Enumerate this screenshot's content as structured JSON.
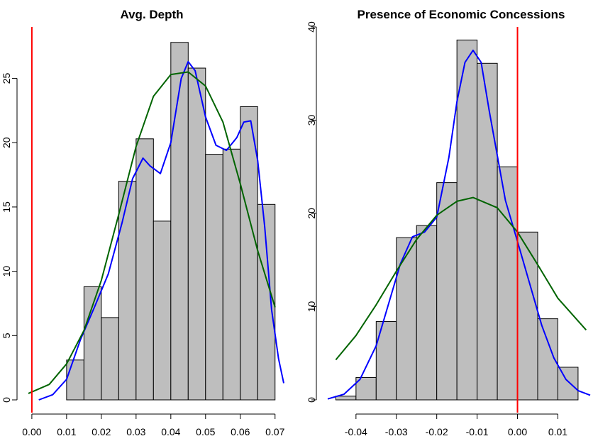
{
  "colors": {
    "bar_fill": "#bebebe",
    "bar_stroke": "#000000",
    "ref_line": "#ff0000",
    "density_kernel": "#0000ff",
    "density_normal": "#006400"
  },
  "chart_data": [
    {
      "type": "bar",
      "subtype": "histogram",
      "title": "Avg. Depth",
      "xlabel": "",
      "ylabel": "",
      "xlim": [
        -0.001,
        0.0725
      ],
      "ylim": [
        0,
        29
      ],
      "x_ticks": [
        0.0,
        0.01,
        0.02,
        0.03,
        0.04,
        0.05,
        0.06,
        0.07
      ],
      "x_tick_labels": [
        "0.00",
        "0.01",
        "0.02",
        "0.03",
        "0.04",
        "0.05",
        "0.06",
        "0.07"
      ],
      "y_ticks": [
        0,
        5,
        10,
        15,
        20,
        25
      ],
      "y_tick_labels": [
        "0",
        "5",
        "10",
        "15",
        "20",
        "25"
      ],
      "bin_edges": [
        0.01,
        0.015,
        0.02,
        0.025,
        0.03,
        0.035,
        0.04,
        0.045,
        0.05,
        0.055,
        0.06,
        0.065,
        0.07
      ],
      "values": [
        3.1,
        8.8,
        6.4,
        17.0,
        20.3,
        13.9,
        27.8,
        25.8,
        19.1,
        19.5,
        22.8,
        15.2
      ],
      "reference_line_x": 0.0,
      "series": [
        {
          "type": "line",
          "color": "blue",
          "x": [
            0.002,
            0.006,
            0.01,
            0.014,
            0.018,
            0.022,
            0.026,
            0.029,
            0.032,
            0.034,
            0.037,
            0.04,
            0.043,
            0.045,
            0.047,
            0.05,
            0.053,
            0.056,
            0.059,
            0.061,
            0.063,
            0.065,
            0.067,
            0.069,
            0.071,
            0.0725
          ],
          "values": [
            0.0,
            0.4,
            1.6,
            4.7,
            7.2,
            9.8,
            13.8,
            17.2,
            18.8,
            18.2,
            17.6,
            20.0,
            25.0,
            26.3,
            25.6,
            22.0,
            19.8,
            19.4,
            20.4,
            21.6,
            21.7,
            18.6,
            13.5,
            7.0,
            3.2,
            1.3
          ]
        },
        {
          "type": "line",
          "color": "darkgreen",
          "x": [
            -0.001,
            0.005,
            0.01,
            0.015,
            0.02,
            0.025,
            0.03,
            0.035,
            0.04,
            0.045,
            0.05,
            0.055,
            0.06,
            0.065,
            0.07
          ],
          "values": [
            0.5,
            1.2,
            2.8,
            5.4,
            9.3,
            14.4,
            19.7,
            23.6,
            25.3,
            25.5,
            24.4,
            21.6,
            16.8,
            11.6,
            7.2
          ]
        }
      ]
    },
    {
      "type": "bar",
      "subtype": "histogram",
      "title": "Presence of Economic Concessions",
      "xlabel": "",
      "ylabel": "",
      "xlim": [
        -0.047,
        0.018
      ],
      "ylim": [
        0,
        40
      ],
      "x_ticks": [
        -0.04,
        -0.03,
        -0.02,
        -0.01,
        0.0,
        0.01
      ],
      "x_tick_labels": [
        "-0.04",
        "-0.03",
        "-0.02",
        "-0.01",
        "0.00",
        "0.01"
      ],
      "y_ticks": [
        0,
        10,
        20,
        30,
        40
      ],
      "y_tick_labels": [
        "0",
        "10",
        "20",
        "30",
        "40"
      ],
      "bin_edges": [
        -0.045,
        -0.04,
        -0.035,
        -0.03,
        -0.025,
        -0.02,
        -0.015,
        -0.01,
        -0.005,
        0.0,
        0.005,
        0.01,
        0.015
      ],
      "values": [
        0.4,
        2.4,
        8.4,
        17.4,
        18.7,
        23.3,
        38.6,
        36.1,
        25.0,
        18.0,
        8.7,
        3.5
      ],
      "reference_line_x": 0.0,
      "series": [
        {
          "type": "line",
          "color": "blue",
          "x": [
            -0.047,
            -0.043,
            -0.039,
            -0.035,
            -0.032,
            -0.029,
            -0.026,
            -0.023,
            -0.02,
            -0.017,
            -0.015,
            -0.013,
            -0.011,
            -0.009,
            -0.007,
            -0.005,
            -0.003,
            0.0,
            0.003,
            0.006,
            0.009,
            0.012,
            0.015,
            0.018
          ],
          "values": [
            0.1,
            0.6,
            2.2,
            5.8,
            10.2,
            14.6,
            17.5,
            18.0,
            19.6,
            26.0,
            32.0,
            36.2,
            37.5,
            36.2,
            31.0,
            26.2,
            21.4,
            17.0,
            12.5,
            8.0,
            4.5,
            2.2,
            1.0,
            0.5
          ]
        },
        {
          "type": "line",
          "color": "darkgreen",
          "x": [
            -0.045,
            -0.04,
            -0.035,
            -0.03,
            -0.025,
            -0.02,
            -0.015,
            -0.011,
            -0.005,
            0.0,
            0.005,
            0.01,
            0.017
          ],
          "values": [
            4.3,
            6.9,
            10.2,
            13.8,
            17.2,
            19.8,
            21.3,
            21.7,
            20.6,
            18.0,
            14.5,
            10.9,
            7.5
          ]
        }
      ]
    }
  ]
}
